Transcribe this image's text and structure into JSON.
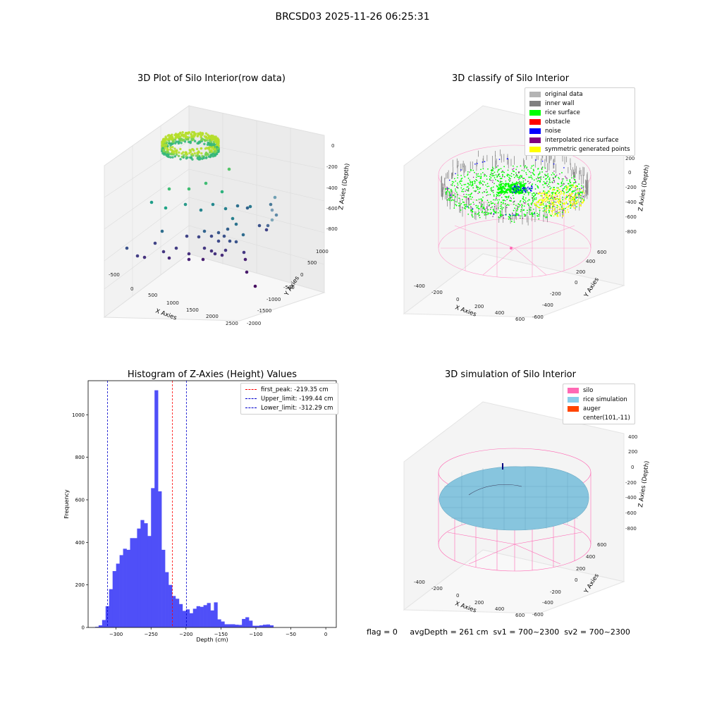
{
  "figure": {
    "suptitle": "BRCSD03 2025-11-26 06:25:31",
    "footer": "flag = 0     avgDepth = 261 cm  sv1 = 700~2300  sv2 = 700~2300"
  },
  "colors": {
    "histogram_bar": "#4f4ff8",
    "first_peak_line": "#ff0000",
    "limit_line": "#0000cc",
    "silo_wire": "#ff66b4",
    "rice_surface": "#87c5de",
    "viridis_high": "#a8db34",
    "viridis_low": "#3b1f5c"
  },
  "panels": {
    "raw": {
      "title": "3D Plot of Silo Interior(row data)",
      "xlabel": "X Axies",
      "ylabel": "Y Axies",
      "zlabel": "Z Axies (Depth)",
      "xticks": [
        "-500",
        "0",
        "500",
        "1000",
        "1500",
        "2000",
        "2500"
      ],
      "yticks": [
        "1000",
        "500",
        "0",
        "-500",
        "-1000",
        "-1500",
        "-2000"
      ],
      "zticks": [
        "0",
        "-200",
        "-400",
        "-600",
        "-800"
      ]
    },
    "classify": {
      "title": "3D classify of Silo Interior",
      "xlabel": "X Axies",
      "ylabel": "Y Axies",
      "zlabel": "Z Axies (Depth)",
      "xticks": [
        "-400",
        "-200",
        "0",
        "200",
        "400",
        "600"
      ],
      "yticks": [
        "600",
        "400",
        "200",
        "0",
        "-200",
        "-400",
        "-600"
      ],
      "zticks": [
        "200",
        "0",
        "-200",
        "-400",
        "-600",
        "-800"
      ],
      "legend": [
        {
          "label": "original data",
          "color": "#b4b4b4"
        },
        {
          "label": "inner wall",
          "color": "#808080"
        },
        {
          "label": "rice surface",
          "color": "#00ff00"
        },
        {
          "label": "obstacle",
          "color": "#ff0000"
        },
        {
          "label": "noise",
          "color": "#0000ff"
        },
        {
          "label": "interpolated rice surface",
          "color": "#800080"
        },
        {
          "label": "symmetric generated points",
          "color": "#ffff00"
        }
      ]
    },
    "simulation": {
      "title": "3D simulation of Silo Interior",
      "xlabel": "X Axies",
      "ylabel": "Y Axies",
      "zlabel": "Z Axies (Depth)",
      "xticks": [
        "-400",
        "-200",
        "0",
        "200",
        "400",
        "600"
      ],
      "yticks": [
        "600",
        "400",
        "200",
        "0",
        "-200",
        "-400",
        "-600"
      ],
      "zticks": [
        "400",
        "200",
        "0",
        "-200",
        "-400",
        "-600",
        "-800"
      ],
      "legend": [
        {
          "label": "silo",
          "color": "#ff69b4"
        },
        {
          "label": "rice simulation",
          "color": "#87ceeb"
        },
        {
          "label": "auger",
          "color": "#ff4500"
        },
        {
          "label": "center(101,-11)",
          "color": ""
        }
      ]
    }
  },
  "chart_data": [
    {
      "type": "bar",
      "title": "Histogram of Z-Axies (Height) Values",
      "xlabel": "Depth (cm)",
      "ylabel": "Frequency",
      "xlim": [
        -340,
        15
      ],
      "ylim": [
        0,
        1160
      ],
      "xticks": [
        -300,
        -250,
        -200,
        -150,
        -100,
        -50,
        0
      ],
      "yticks": [
        0,
        200,
        400,
        600,
        800,
        1000
      ],
      "bin_width": 5,
      "bins": [
        {
          "x": -330,
          "y": 3
        },
        {
          "x": -325,
          "y": 10
        },
        {
          "x": -320,
          "y": 35
        },
        {
          "x": -315,
          "y": 100
        },
        {
          "x": -310,
          "y": 180
        },
        {
          "x": -305,
          "y": 265
        },
        {
          "x": -300,
          "y": 300
        },
        {
          "x": -295,
          "y": 340
        },
        {
          "x": -290,
          "y": 370
        },
        {
          "x": -285,
          "y": 365
        },
        {
          "x": -280,
          "y": 420
        },
        {
          "x": -275,
          "y": 420
        },
        {
          "x": -270,
          "y": 465
        },
        {
          "x": -265,
          "y": 505
        },
        {
          "x": -260,
          "y": 490
        },
        {
          "x": -255,
          "y": 430
        },
        {
          "x": -250,
          "y": 655
        },
        {
          "x": -245,
          "y": 1115
        },
        {
          "x": -240,
          "y": 640
        },
        {
          "x": -235,
          "y": 365
        },
        {
          "x": -230,
          "y": 260
        },
        {
          "x": -225,
          "y": 200
        },
        {
          "x": -220,
          "y": 148
        },
        {
          "x": -215,
          "y": 135
        },
        {
          "x": -210,
          "y": 110
        },
        {
          "x": -205,
          "y": 78
        },
        {
          "x": -200,
          "y": 85
        },
        {
          "x": -195,
          "y": 67
        },
        {
          "x": -190,
          "y": 88
        },
        {
          "x": -185,
          "y": 100
        },
        {
          "x": -180,
          "y": 97
        },
        {
          "x": -175,
          "y": 105
        },
        {
          "x": -170,
          "y": 115
        },
        {
          "x": -165,
          "y": 80
        },
        {
          "x": -160,
          "y": 118
        },
        {
          "x": -155,
          "y": 38
        },
        {
          "x": -150,
          "y": 28
        },
        {
          "x": -145,
          "y": 15
        },
        {
          "x": -140,
          "y": 15
        },
        {
          "x": -135,
          "y": 15
        },
        {
          "x": -130,
          "y": 13
        },
        {
          "x": -125,
          "y": 12
        },
        {
          "x": -120,
          "y": 40
        },
        {
          "x": -115,
          "y": 48
        },
        {
          "x": -110,
          "y": 32
        },
        {
          "x": -105,
          "y": 8
        },
        {
          "x": -100,
          "y": 8
        },
        {
          "x": -95,
          "y": 10
        },
        {
          "x": -90,
          "y": 13
        },
        {
          "x": -85,
          "y": 14
        },
        {
          "x": -80,
          "y": 10
        }
      ],
      "vlines": [
        {
          "name": "first_peak: -219.35 cm",
          "x": -219.35,
          "color": "#ff0000"
        },
        {
          "name": "Upper_limit: -199.44 cm",
          "x": -199.44,
          "color": "#0000cc"
        },
        {
          "name": "Lower_limit: -312.29 cm",
          "x": -312.29,
          "color": "#0000cc"
        }
      ],
      "legend": "top-right"
    }
  ]
}
